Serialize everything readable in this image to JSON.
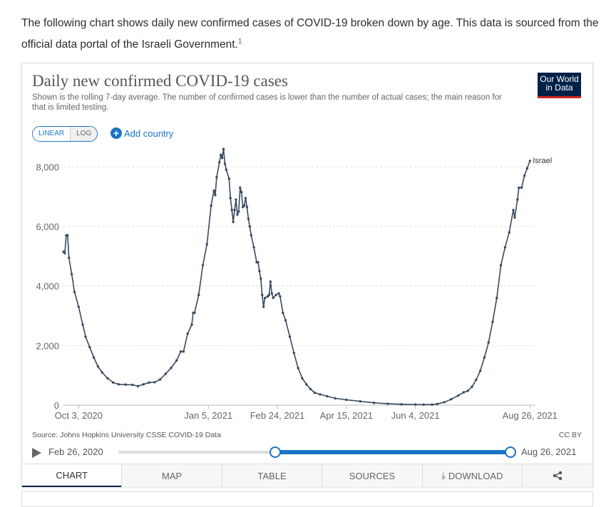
{
  "intro": {
    "text": "The following chart shows daily new confirmed cases of COVID-19 broken down by age. This data is sourced from the official data portal of the Israeli Government.",
    "footnote": "1"
  },
  "chart_header": {
    "title": "Daily new confirmed COVID-19 cases",
    "subtitle": "Shown is the rolling 7-day average. The number of confirmed cases is lower than the number of actual cases; the main reason for that is limited testing.",
    "logo_line1": "Our World",
    "logo_line2": "in Data"
  },
  "controls": {
    "linear_label": "LINEAR",
    "log_label": "LOG",
    "add_country_label": "Add country"
  },
  "chart_data": {
    "type": "line",
    "title": "Daily new confirmed COVID-19 cases",
    "x_tick_labels": [
      "Oct 3, 2020",
      "Jan 5, 2021",
      "Feb 24, 2021",
      "Apr 15, 2021",
      "Jun 4, 2021",
      "Aug 26, 2021"
    ],
    "y_tick_labels": [
      "0",
      "2,000",
      "4,000",
      "6,000",
      "8,000"
    ],
    "y_ticks": [
      0,
      2000,
      4000,
      6000,
      8000
    ],
    "ylim": [
      0,
      8700
    ],
    "xlim": [
      "2020-09-22",
      "2021-08-30"
    ],
    "grid": true,
    "series": [
      {
        "name": "Israel",
        "color": "#3a4a5e",
        "points": [
          [
            "2020-09-22",
            5150
          ],
          [
            "2020-09-23",
            5100
          ],
          [
            "2020-09-24",
            5700
          ],
          [
            "2020-09-25",
            5700
          ],
          [
            "2020-09-26",
            4950
          ],
          [
            "2020-09-28",
            4400
          ],
          [
            "2020-09-30",
            3800
          ],
          [
            "2020-10-03",
            3300
          ],
          [
            "2020-10-06",
            2700
          ],
          [
            "2020-10-08",
            2300
          ],
          [
            "2020-10-11",
            1950
          ],
          [
            "2020-10-14",
            1600
          ],
          [
            "2020-10-17",
            1300
          ],
          [
            "2020-10-20",
            1100
          ],
          [
            "2020-10-24",
            900
          ],
          [
            "2020-10-28",
            760
          ],
          [
            "2020-11-01",
            700
          ],
          [
            "2020-11-06",
            690
          ],
          [
            "2020-11-11",
            680
          ],
          [
            "2020-11-15",
            640
          ],
          [
            "2020-11-19",
            700
          ],
          [
            "2020-11-23",
            760
          ],
          [
            "2020-11-27",
            770
          ],
          [
            "2020-12-01",
            860
          ],
          [
            "2020-12-05",
            1050
          ],
          [
            "2020-12-09",
            1250
          ],
          [
            "2020-12-13",
            1500
          ],
          [
            "2020-12-16",
            1800
          ],
          [
            "2020-12-18",
            1800
          ],
          [
            "2020-12-21",
            2400
          ],
          [
            "2020-12-24",
            2700
          ],
          [
            "2020-12-25",
            3100
          ],
          [
            "2020-12-26",
            3100
          ],
          [
            "2020-12-29",
            3700
          ],
          [
            "2021-01-01",
            4700
          ],
          [
            "2021-01-04",
            5400
          ],
          [
            "2021-01-07",
            6700
          ],
          [
            "2021-01-09",
            7200
          ],
          [
            "2021-01-10",
            7050
          ],
          [
            "2021-01-11",
            7650
          ],
          [
            "2021-01-13",
            8150
          ],
          [
            "2021-01-14",
            8400
          ],
          [
            "2021-01-15",
            8300
          ],
          [
            "2021-01-16",
            8600
          ],
          [
            "2021-01-17",
            8100
          ],
          [
            "2021-01-18",
            7900
          ],
          [
            "2021-01-20",
            7600
          ],
          [
            "2021-01-21",
            6950
          ],
          [
            "2021-01-22",
            6550
          ],
          [
            "2021-01-23",
            6150
          ],
          [
            "2021-01-24",
            6550
          ],
          [
            "2021-01-25",
            6900
          ],
          [
            "2021-01-26",
            6400
          ],
          [
            "2021-01-27",
            6500
          ],
          [
            "2021-01-28",
            7300
          ],
          [
            "2021-01-29",
            7150
          ],
          [
            "2021-01-30",
            6650
          ],
          [
            "2021-01-31",
            6700
          ],
          [
            "2021-02-01",
            6950
          ],
          [
            "2021-02-02",
            6650
          ],
          [
            "2021-02-03",
            6250
          ],
          [
            "2021-02-04",
            6000
          ],
          [
            "2021-02-05",
            5700
          ],
          [
            "2021-02-07",
            5300
          ],
          [
            "2021-02-09",
            4800
          ],
          [
            "2021-02-10",
            4800
          ],
          [
            "2021-02-11",
            4500
          ],
          [
            "2021-02-12",
            4250
          ],
          [
            "2021-02-13",
            3700
          ],
          [
            "2021-02-14",
            3300
          ],
          [
            "2021-02-15",
            3600
          ],
          [
            "2021-02-17",
            3650
          ],
          [
            "2021-02-18",
            3700
          ],
          [
            "2021-02-19",
            4150
          ],
          [
            "2021-02-20",
            3750
          ],
          [
            "2021-02-21",
            3600
          ],
          [
            "2021-02-23",
            3700
          ],
          [
            "2021-02-25",
            3750
          ],
          [
            "2021-02-26",
            3650
          ],
          [
            "2021-02-28",
            3100
          ],
          [
            "2021-03-02",
            2850
          ],
          [
            "2021-03-05",
            2300
          ],
          [
            "2021-03-08",
            1750
          ],
          [
            "2021-03-11",
            1250
          ],
          [
            "2021-03-14",
            900
          ],
          [
            "2021-03-17",
            700
          ],
          [
            "2021-03-20",
            540
          ],
          [
            "2021-03-23",
            420
          ],
          [
            "2021-03-27",
            360
          ],
          [
            "2021-04-01",
            300
          ],
          [
            "2021-04-07",
            230
          ],
          [
            "2021-04-15",
            180
          ],
          [
            "2021-04-25",
            130
          ],
          [
            "2021-05-05",
            80
          ],
          [
            "2021-05-15",
            50
          ],
          [
            "2021-05-25",
            30
          ],
          [
            "2021-06-04",
            25
          ],
          [
            "2021-06-10",
            20
          ],
          [
            "2021-06-16",
            20
          ],
          [
            "2021-06-20",
            40
          ],
          [
            "2021-06-25",
            100
          ],
          [
            "2021-06-30",
            200
          ],
          [
            "2021-07-05",
            320
          ],
          [
            "2021-07-09",
            430
          ],
          [
            "2021-07-12",
            480
          ],
          [
            "2021-07-15",
            620
          ],
          [
            "2021-07-18",
            850
          ],
          [
            "2021-07-21",
            1150
          ],
          [
            "2021-07-24",
            1600
          ],
          [
            "2021-07-27",
            2100
          ],
          [
            "2021-07-30",
            2800
          ],
          [
            "2021-08-02",
            3600
          ],
          [
            "2021-08-05",
            4700
          ],
          [
            "2021-08-08",
            5300
          ],
          [
            "2021-08-11",
            5800
          ],
          [
            "2021-08-14",
            6550
          ],
          [
            "2021-08-15",
            6300
          ],
          [
            "2021-08-17",
            6900
          ],
          [
            "2021-08-18",
            7300
          ],
          [
            "2021-08-20",
            7300
          ],
          [
            "2021-08-22",
            7700
          ],
          [
            "2021-08-24",
            7950
          ],
          [
            "2021-08-26",
            8200
          ]
        ]
      }
    ]
  },
  "source": "Source: Johns Hopkins University CSSE COVID-19 Data",
  "license": "CC BY",
  "timeline": {
    "start_label": "Feb 26, 2020",
    "end_label": "Aug 26, 2021",
    "range_start_fraction": 0.4,
    "range_end_fraction": 1.0
  },
  "tabs": {
    "chart": "CHART",
    "map": "MAP",
    "table": "TABLE",
    "sources": "SOURCES",
    "download": "DOWNLOAD"
  },
  "colors": {
    "accent": "#1a73c7",
    "line": "#3a4a5e",
    "logo_bg": "#002147"
  }
}
